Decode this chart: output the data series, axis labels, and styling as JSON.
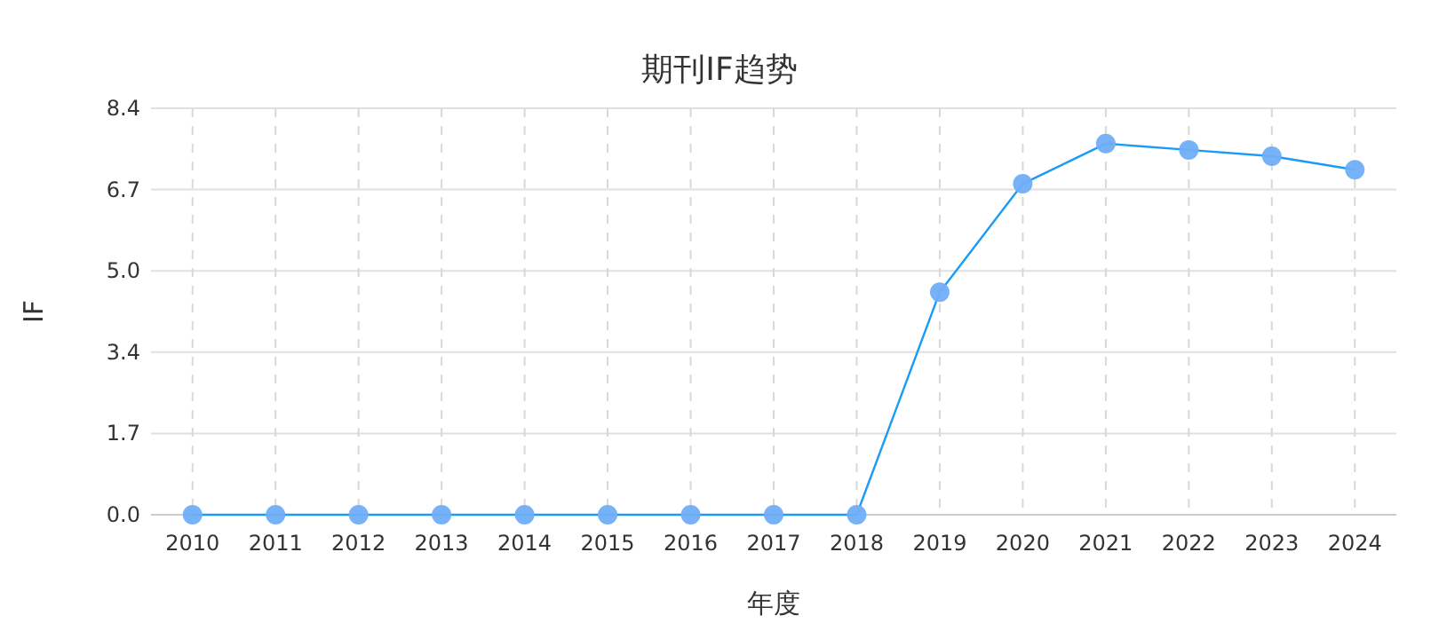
{
  "chart_data": {
    "type": "line",
    "title": "期刊IF趋势",
    "xlabel": "年度",
    "ylabel": "IF",
    "categories": [
      "2010",
      "2011",
      "2012",
      "2013",
      "2014",
      "2015",
      "2016",
      "2017",
      "2018",
      "2019",
      "2020",
      "2021",
      "2022",
      "2023",
      "2024"
    ],
    "series": [
      {
        "color": "#1a9bf5",
        "values": [
          0,
          0,
          0,
          0,
          0,
          0,
          0,
          0,
          0,
          4.6,
          6.84,
          7.67,
          7.54,
          7.41,
          7.13
        ]
      }
    ],
    "ylim": [
      0,
      8.4
    ],
    "yticks": [
      {
        "value": 0,
        "label": "0.0"
      },
      {
        "value": 1.68,
        "label": "1.7"
      },
      {
        "value": 3.36,
        "label": "3.4"
      },
      {
        "value": 5.04,
        "label": "5.0"
      },
      {
        "value": 6.72,
        "label": "6.7"
      },
      8.4
    ],
    "grid": true,
    "marker": "circle",
    "line_style": "solid"
  }
}
